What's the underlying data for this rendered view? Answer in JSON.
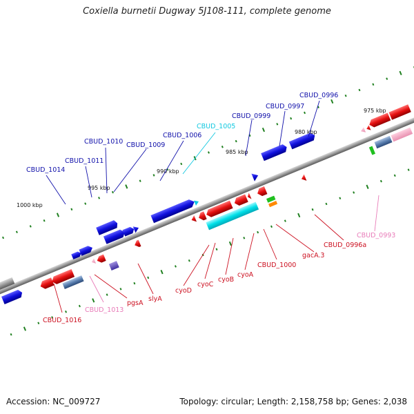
{
  "title": "Coxiella burnetii Dugway 5J108-111, complete genome",
  "accession": "Accession: NC_009727",
  "summary": "Topology: circular; Length: 2,158,758 bp; Genes: 2,038",
  "colors": {
    "forward_gene": "#1010dd",
    "reverse_gene": "#e51010",
    "cyo_operon": "#00e0e8",
    "pseudogene_label": "#e87bb8",
    "label_blue": "#1010aa",
    "label_red": "#cc1020",
    "label_cyan": "#10c8e0",
    "backbone": "#808080",
    "tick": "#208020"
  },
  "scale_ticks": [
    "1000 kbp",
    "995 kbp",
    "990 kbp",
    "985 kbp",
    "980 kbp",
    "975 kbp"
  ],
  "labels_top": [
    "CBUD_1014",
    "CBUD_1011",
    "CBUD_1010",
    "CBUD_1009",
    "CBUD_1006",
    "CBUD_1005",
    "CBUD_0999",
    "CBUD_0997",
    "CBUD_0996"
  ],
  "labels_bottom": [
    "CBUD_1016",
    "CBUD_1013",
    "pgsA",
    "slyA",
    "cyoD",
    "cyoC",
    "cyoB",
    "cyoA",
    "CBUD_1000",
    "gacA.3",
    "CBUD_0996a",
    "CBUD_0993"
  ]
}
